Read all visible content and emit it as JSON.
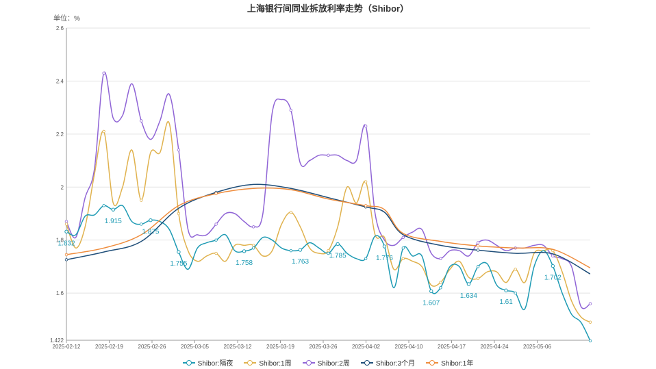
{
  "chart_data": {
    "type": "line",
    "title": "上海银行间同业拆放利率走势（Shibor）",
    "unit_label": "单位：%",
    "ylim": [
      1.422,
      2.6
    ],
    "y_ticks": [
      "1.422",
      "1.6",
      "1.8",
      "2",
      "2.2",
      "2.4",
      "2.6"
    ],
    "grid": true,
    "legend_position": "bottom",
    "x_tick_labels": [
      "2025-02-12",
      "2025-02-19",
      "2025-02-26",
      "2025-03-05",
      "2025-03-12",
      "2025-03-19",
      "2025-03-26",
      "2025-04-02",
      "2025-04-10",
      "2025-04-17",
      "2025-04-24",
      "2025-05-06"
    ],
    "series": [
      {
        "name": "Shibor:隔夜",
        "color": "#1f9bb4",
        "values": [
          [
            0,
            1.832
          ],
          [
            1,
            1.82
          ],
          [
            2,
            1.89
          ],
          [
            3,
            1.895
          ],
          [
            4,
            1.93
          ],
          [
            5,
            1.915
          ],
          [
            6,
            1.93
          ],
          [
            7,
            1.87
          ],
          [
            8,
            1.86
          ],
          [
            9,
            1.875
          ],
          [
            10,
            1.87
          ],
          [
            11,
            1.84
          ],
          [
            12,
            1.755
          ],
          [
            13,
            1.69
          ],
          [
            14,
            1.77
          ],
          [
            15,
            1.79
          ],
          [
            16,
            1.8
          ],
          [
            17,
            1.82
          ],
          [
            18,
            1.76
          ],
          [
            19,
            1.758
          ],
          [
            20,
            1.77
          ],
          [
            21,
            1.81
          ],
          [
            22,
            1.8
          ],
          [
            23,
            1.77
          ],
          [
            24,
            1.76
          ],
          [
            25,
            1.763
          ],
          [
            26,
            1.79
          ],
          [
            27,
            1.77
          ],
          [
            28,
            1.75
          ],
          [
            29,
            1.785
          ],
          [
            30,
            1.75
          ],
          [
            31,
            1.73
          ],
          [
            32,
            1.73
          ],
          [
            33,
            1.815
          ],
          [
            34,
            1.776
          ],
          [
            35,
            1.62
          ],
          [
            36,
            1.77
          ],
          [
            37,
            1.74
          ],
          [
            38,
            1.74
          ],
          [
            39,
            1.607
          ],
          [
            40,
            1.62
          ],
          [
            41,
            1.7
          ],
          [
            42,
            1.7
          ],
          [
            43,
            1.634
          ],
          [
            44,
            1.7
          ],
          [
            45,
            1.71
          ],
          [
            46,
            1.63
          ],
          [
            47,
            1.61
          ],
          [
            48,
            1.6
          ],
          [
            49,
            1.54
          ],
          [
            50,
            1.7
          ],
          [
            51,
            1.76
          ],
          [
            52,
            1.702
          ],
          [
            53,
            1.6
          ],
          [
            54,
            1.52
          ],
          [
            55,
            1.49
          ],
          [
            56,
            1.42
          ]
        ],
        "labels": [
          [
            0,
            1.832
          ],
          [
            5,
            1.915
          ],
          [
            9,
            1.875
          ],
          [
            12,
            1.755
          ],
          [
            19,
            1.758
          ],
          [
            25,
            1.763
          ],
          [
            29,
            1.785
          ],
          [
            34,
            1.776
          ],
          [
            39,
            1.607
          ],
          [
            43,
            1.634
          ],
          [
            47,
            1.61
          ],
          [
            52,
            1.702
          ]
        ]
      },
      {
        "name": "Shibor:1周",
        "color": "#e0b24e",
        "values": [
          [
            0,
            1.86
          ],
          [
            1,
            1.77
          ],
          [
            2,
            1.85
          ],
          [
            3,
            2.05
          ],
          [
            4,
            2.21
          ],
          [
            5,
            1.94
          ],
          [
            6,
            2.0
          ],
          [
            7,
            2.14
          ],
          [
            8,
            1.95
          ],
          [
            9,
            2.13
          ],
          [
            10,
            2.13
          ],
          [
            11,
            2.24
          ],
          [
            12,
            1.9
          ],
          [
            13,
            1.76
          ],
          [
            14,
            1.72
          ],
          [
            15,
            1.74
          ],
          [
            16,
            1.75
          ],
          [
            17,
            1.72
          ],
          [
            18,
            1.78
          ],
          [
            19,
            1.78
          ],
          [
            20,
            1.78
          ],
          [
            21,
            1.74
          ],
          [
            22,
            1.76
          ],
          [
            23,
            1.86
          ],
          [
            24,
            1.905
          ],
          [
            25,
            1.85
          ],
          [
            26,
            1.77
          ],
          [
            27,
            1.75
          ],
          [
            28,
            1.76
          ],
          [
            29,
            1.85
          ],
          [
            30,
            2.0
          ],
          [
            31,
            1.94
          ],
          [
            32,
            2.02
          ],
          [
            33,
            1.82
          ],
          [
            34,
            1.81
          ],
          [
            35,
            1.69
          ],
          [
            36,
            1.73
          ],
          [
            37,
            1.72
          ],
          [
            38,
            1.7
          ],
          [
            39,
            1.63
          ],
          [
            40,
            1.64
          ],
          [
            41,
            1.69
          ],
          [
            42,
            1.72
          ],
          [
            43,
            1.66
          ],
          [
            44,
            1.655
          ],
          [
            45,
            1.68
          ],
          [
            46,
            1.68
          ],
          [
            47,
            1.64
          ],
          [
            48,
            1.69
          ],
          [
            49,
            1.64
          ],
          [
            50,
            1.75
          ],
          [
            51,
            1.76
          ],
          [
            52,
            1.76
          ],
          [
            53,
            1.68
          ],
          [
            54,
            1.57
          ],
          [
            55,
            1.51
          ],
          [
            56,
            1.49
          ]
        ]
      },
      {
        "name": "Shibor:2周",
        "color": "#9065d6",
        "values": [
          [
            0,
            1.87
          ],
          [
            1,
            1.81
          ],
          [
            2,
            1.96
          ],
          [
            3,
            2.07
          ],
          [
            4,
            2.43
          ],
          [
            5,
            2.26
          ],
          [
            6,
            2.27
          ],
          [
            7,
            2.39
          ],
          [
            8,
            2.25
          ],
          [
            9,
            2.18
          ],
          [
            10,
            2.25
          ],
          [
            11,
            2.35
          ],
          [
            12,
            2.14
          ],
          [
            13,
            1.84
          ],
          [
            14,
            1.82
          ],
          [
            15,
            1.82
          ],
          [
            16,
            1.86
          ],
          [
            17,
            1.9
          ],
          [
            18,
            1.9
          ],
          [
            19,
            1.87
          ],
          [
            20,
            1.85
          ],
          [
            21,
            1.9
          ],
          [
            22,
            2.28
          ],
          [
            23,
            2.33
          ],
          [
            24,
            2.29
          ],
          [
            25,
            2.09
          ],
          [
            26,
            2.1
          ],
          [
            27,
            2.12
          ],
          [
            28,
            2.12
          ],
          [
            29,
            2.12
          ],
          [
            30,
            2.1
          ],
          [
            31,
            2.1
          ],
          [
            32,
            2.23
          ],
          [
            33,
            1.9
          ],
          [
            34,
            1.8
          ],
          [
            35,
            1.78
          ],
          [
            36,
            1.81
          ],
          [
            37,
            1.83
          ],
          [
            38,
            1.84
          ],
          [
            39,
            1.75
          ],
          [
            40,
            1.73
          ],
          [
            41,
            1.76
          ],
          [
            42,
            1.76
          ],
          [
            43,
            1.74
          ],
          [
            44,
            1.79
          ],
          [
            45,
            1.8
          ],
          [
            46,
            1.78
          ],
          [
            47,
            1.76
          ],
          [
            48,
            1.77
          ],
          [
            49,
            1.77
          ],
          [
            50,
            1.78
          ],
          [
            51,
            1.78
          ],
          [
            52,
            1.74
          ],
          [
            53,
            1.73
          ],
          [
            54,
            1.7
          ],
          [
            55,
            1.55
          ],
          [
            56,
            1.56
          ]
        ]
      },
      {
        "name": "Shibor:3个月",
        "color": "#1f4e79",
        "values": [
          [
            0,
            1.726
          ],
          [
            4,
            1.755
          ],
          [
            8,
            1.795
          ],
          [
            12,
            1.92
          ],
          [
            16,
            1.98
          ],
          [
            20,
            2.01
          ],
          [
            24,
            1.995
          ],
          [
            28,
            1.96
          ],
          [
            32,
            1.925
          ],
          [
            34,
            1.905
          ],
          [
            36,
            1.82
          ],
          [
            40,
            1.78
          ],
          [
            44,
            1.762
          ],
          [
            48,
            1.75
          ],
          [
            52,
            1.748
          ],
          [
            56,
            1.672
          ]
        ]
      },
      {
        "name": "Shibor:1年",
        "color": "#ef8c3c",
        "values": [
          [
            0,
            1.745
          ],
          [
            4,
            1.77
          ],
          [
            8,
            1.82
          ],
          [
            12,
            1.93
          ],
          [
            16,
            1.975
          ],
          [
            20,
            1.995
          ],
          [
            24,
            1.99
          ],
          [
            28,
            1.955
          ],
          [
            32,
            1.93
          ],
          [
            34,
            1.915
          ],
          [
            36,
            1.825
          ],
          [
            40,
            1.795
          ],
          [
            44,
            1.778
          ],
          [
            48,
            1.77
          ],
          [
            52,
            1.765
          ],
          [
            56,
            1.695
          ]
        ]
      }
    ]
  }
}
